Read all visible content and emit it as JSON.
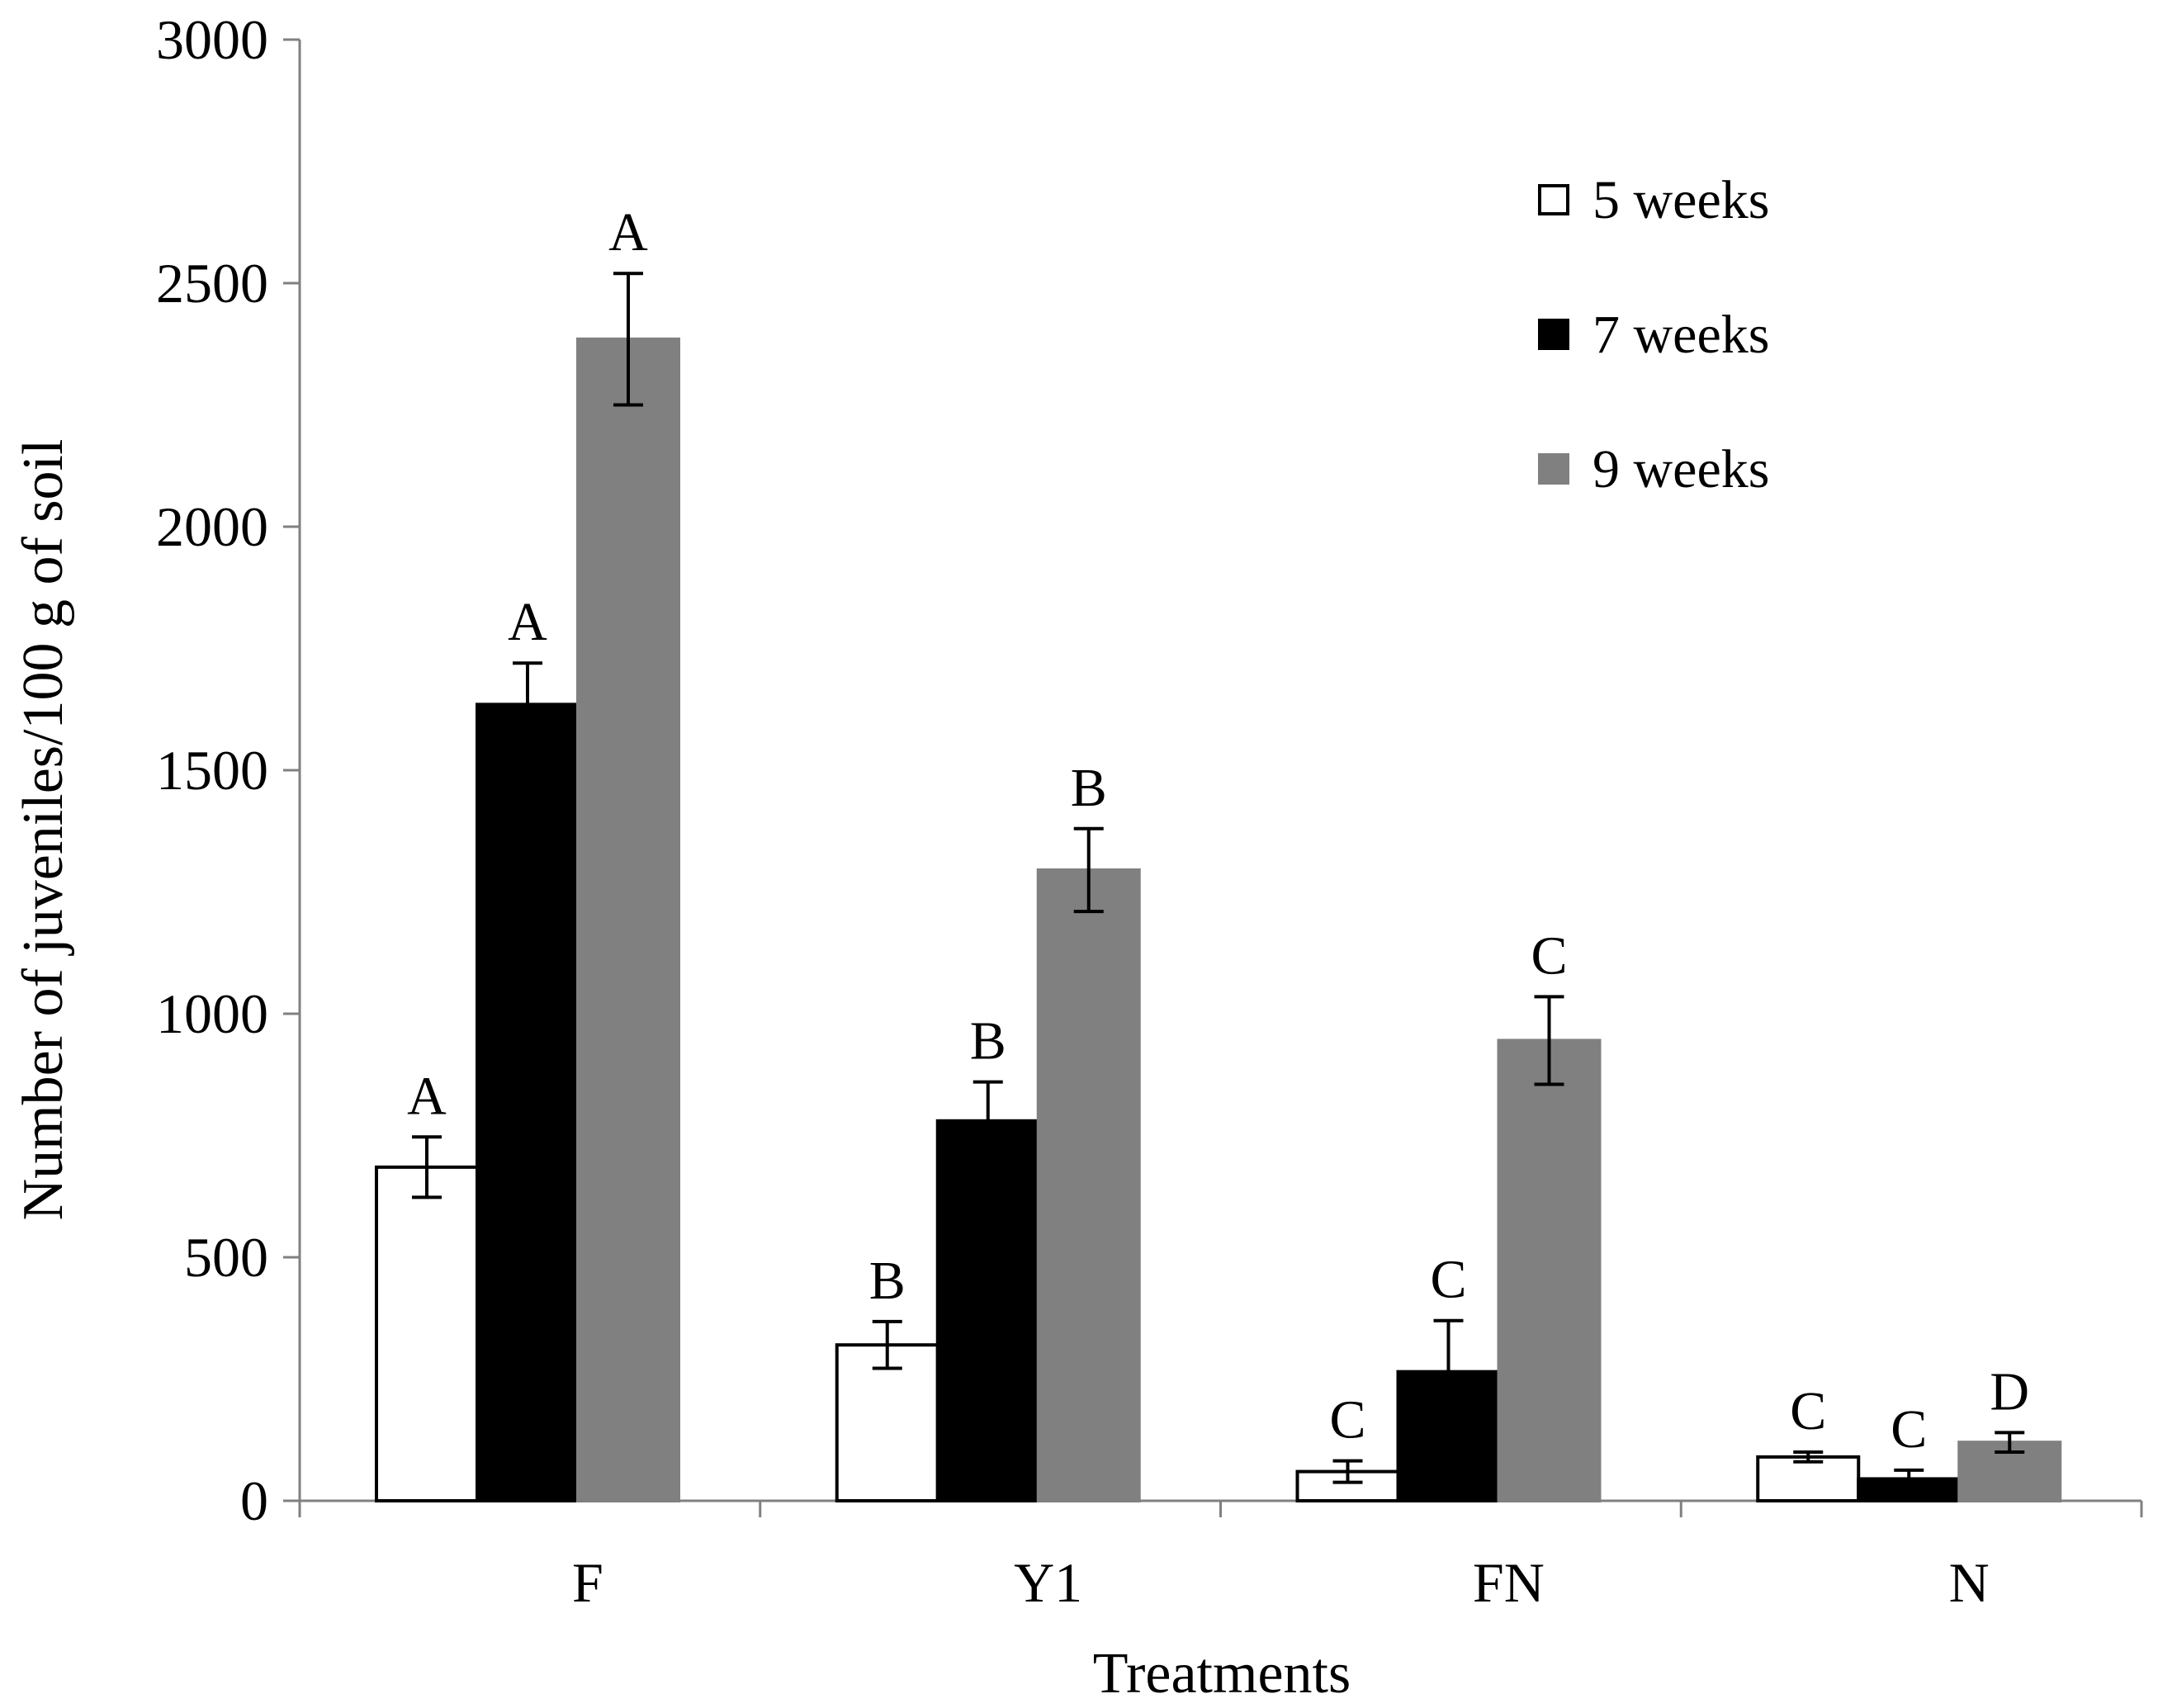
{
  "chart_data": {
    "type": "bar",
    "title": "",
    "xlabel": "Treatments",
    "ylabel": "Number of juveniles/100 g of soil",
    "ylim": [
      0,
      3000
    ],
    "yticks": [
      0,
      500,
      1000,
      1500,
      2000,
      2500,
      3000
    ],
    "grid": false,
    "legend_position": "top-right",
    "categories": [
      "F",
      "Y1",
      "FN",
      "N"
    ],
    "series": [
      {
        "name": "5 weeks",
        "color": "#ffffff",
        "stroke": "#000000",
        "values": [
          685,
          320,
          60,
          90
        ],
        "errors": [
          62,
          48,
          22,
          10
        ],
        "labels": [
          "A",
          "B",
          "C",
          "C"
        ]
      },
      {
        "name": "7 weeks",
        "color": "#000000",
        "stroke": "#000000",
        "values": [
          1635,
          780,
          265,
          45
        ],
        "errors": [
          85,
          80,
          105,
          18
        ],
        "labels": [
          "A",
          "B",
          "C",
          "C"
        ]
      },
      {
        "name": "9 weeks",
        "color": "#808080",
        "stroke": "#808080",
        "values": [
          2385,
          1295,
          945,
          120
        ],
        "errors": [
          135,
          85,
          90,
          20
        ],
        "labels": [
          "A",
          "B",
          "C",
          "D"
        ]
      }
    ]
  }
}
